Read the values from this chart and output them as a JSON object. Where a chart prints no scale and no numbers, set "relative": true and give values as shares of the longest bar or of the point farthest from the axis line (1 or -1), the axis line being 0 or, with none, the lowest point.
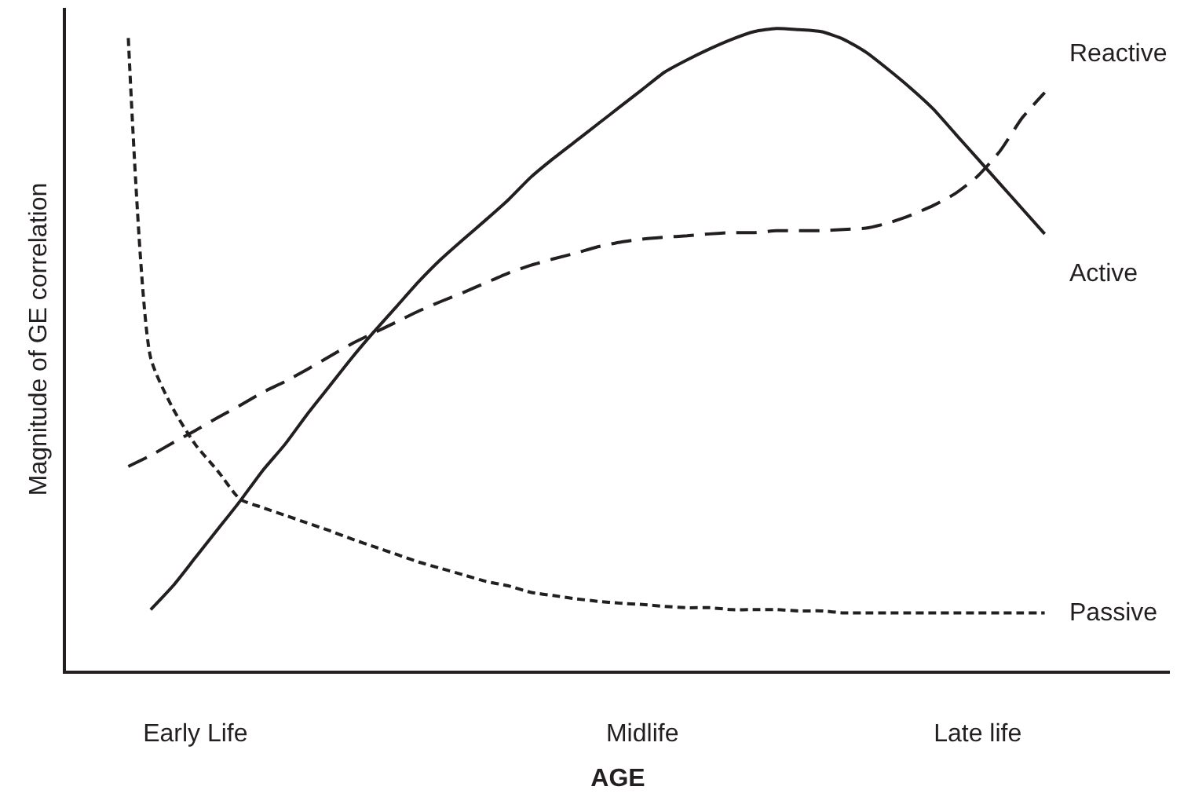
{
  "chart_data": {
    "type": "line",
    "xlabel": "AGE",
    "ylabel": "Magnitude of GE correlation",
    "relative": true,
    "grid": false,
    "legend": false,
    "marker": "none",
    "categories": [
      null,
      null,
      null,
      "Early Life",
      null,
      null,
      null,
      null,
      null,
      null,
      null,
      null,
      null,
      null,
      null,
      null,
      null,
      null,
      null,
      null,
      null,
      null,
      null,
      "Midlife",
      null,
      null,
      null,
      null,
      null,
      null,
      null,
      null,
      null,
      null,
      null,
      null,
      null,
      null,
      "Late life",
      null,
      null,
      null
    ],
    "series": [
      {
        "name": "Reactive",
        "color": "#231f20",
        "line_style": "dashed",
        "values": [
          0.318,
          0.335,
          0.355,
          0.374,
          0.394,
          0.413,
          0.433,
          0.45,
          0.469,
          0.489,
          0.509,
          0.526,
          0.543,
          0.56,
          0.575,
          0.589,
          0.604,
          0.619,
          0.631,
          0.641,
          0.65,
          0.66,
          0.667,
          0.672,
          0.675,
          0.677,
          0.68,
          0.682,
          0.682,
          0.685,
          0.685,
          0.685,
          0.687,
          0.689,
          0.697,
          0.709,
          0.724,
          0.743,
          0.77,
          0.809,
          0.861,
          0.9
        ]
      },
      {
        "name": "Active",
        "color": "#231f20",
        "line_style": "solid",
        "values": [
          null,
          0.095,
          0.132,
          0.176,
          0.22,
          0.264,
          0.311,
          0.352,
          0.399,
          0.443,
          0.487,
          0.528,
          0.567,
          0.606,
          0.641,
          0.672,
          0.702,
          0.733,
          0.768,
          0.797,
          0.824,
          0.851,
          0.878,
          0.905,
          0.932,
          0.951,
          0.968,
          0.983,
          0.995,
          1,
          0.998,
          0.995,
          0.983,
          0.963,
          0.936,
          0.907,
          0.875,
          0.836,
          0.797,
          0.758,
          0.719,
          0.68
        ]
      },
      {
        "name": "Passive",
        "color": "#231f20",
        "line_style": "dotted",
        "values": [
          0.985,
          0.487,
          0.408,
          0.352,
          0.311,
          0.267,
          0.254,
          0.242,
          0.23,
          0.218,
          0.205,
          0.193,
          0.181,
          0.169,
          0.159,
          0.149,
          0.139,
          0.132,
          0.122,
          0.117,
          0.112,
          0.108,
          0.105,
          0.103,
          0.1,
          0.098,
          0.098,
          0.095,
          0.095,
          0.095,
          0.093,
          0.093,
          0.09,
          0.09,
          0.09,
          0.09,
          0.09,
          0.09,
          0.09,
          0.09,
          0.09,
          0.09
        ]
      }
    ]
  }
}
